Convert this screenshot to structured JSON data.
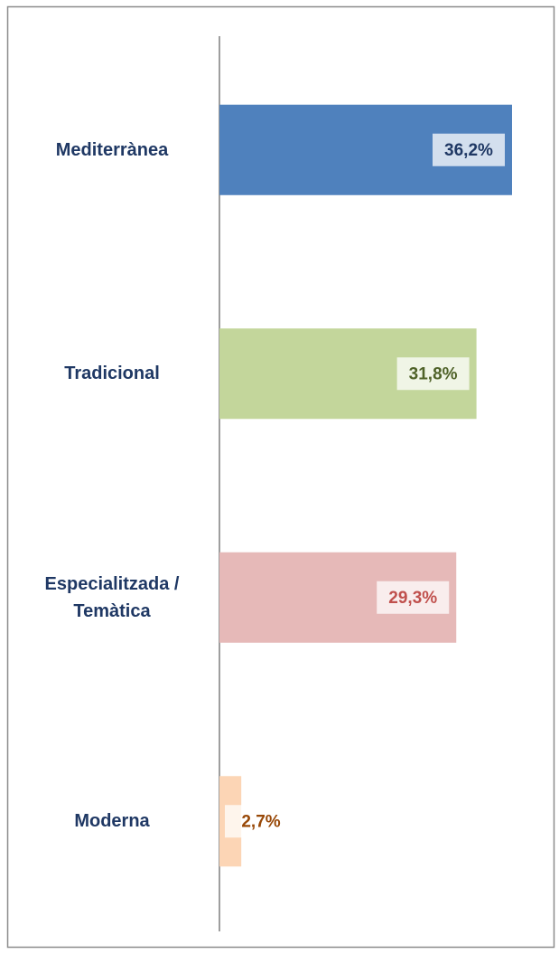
{
  "chart_data": {
    "type": "bar",
    "orientation": "horizontal",
    "categories": [
      "Mediterrànea",
      "Tradicional",
      "Especialitzada / Temàtica",
      "Moderna"
    ],
    "values": [
      36.2,
      31.8,
      29.3,
      2.7
    ],
    "value_labels": [
      "36,2%",
      "31,8%",
      "29,3%",
      "2,7%"
    ],
    "colors": [
      "#4f81bd",
      "#c3d69b",
      "#e6b9b8",
      "#fcd5b5"
    ],
    "label_colors": [
      "#1f3864",
      "#4f6228",
      "#c0504d",
      "#984807"
    ]
  }
}
